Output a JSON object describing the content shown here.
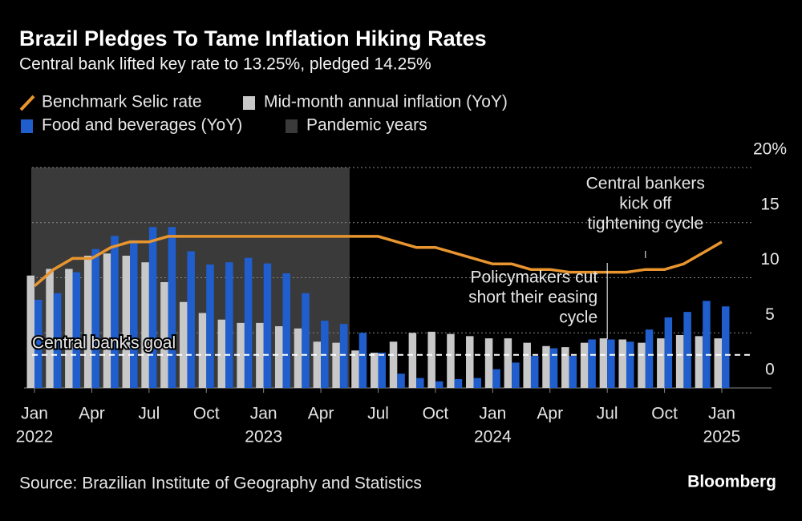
{
  "chart_data": {
    "type": "bar-line",
    "title": "Brazil Pledges To Tame Inflation Hiking Rates",
    "subtitle": "Central bank lifted key rate to 13.25%, pledged 14.25%",
    "source": "Source: Brazilian Institute of Geography and Statistics",
    "brand": "Bloomberg",
    "x": [
      "2022-01",
      "2022-02",
      "2022-03",
      "2022-04",
      "2022-05",
      "2022-06",
      "2022-07",
      "2022-08",
      "2022-09",
      "2022-10",
      "2022-11",
      "2022-12",
      "2023-01",
      "2023-02",
      "2023-03",
      "2023-04",
      "2023-05",
      "2023-06",
      "2023-07",
      "2023-08",
      "2023-09",
      "2023-10",
      "2023-11",
      "2023-12",
      "2024-01",
      "2024-02",
      "2024-03",
      "2024-04",
      "2024-05",
      "2024-06",
      "2024-07",
      "2024-08",
      "2024-09",
      "2024-10",
      "2024-11",
      "2024-12",
      "2025-01"
    ],
    "series": [
      {
        "name": "Benchmark Selic rate",
        "kind": "line",
        "color": "#e8952f",
        "values": [
          9.25,
          10.75,
          11.75,
          11.75,
          12.75,
          13.25,
          13.25,
          13.75,
          13.75,
          13.75,
          13.75,
          13.75,
          13.75,
          13.75,
          13.75,
          13.75,
          13.75,
          13.75,
          13.75,
          13.25,
          12.75,
          12.75,
          12.25,
          11.75,
          11.25,
          11.25,
          10.75,
          10.75,
          10.5,
          10.5,
          10.5,
          10.5,
          10.75,
          10.75,
          11.25,
          12.25,
          13.25
        ]
      },
      {
        "name": "Mid-month annual inflation (YoY)",
        "kind": "bar",
        "color": "#c8c8c8",
        "values": [
          10.2,
          10.8,
          10.8,
          12.0,
          12.2,
          12.0,
          11.4,
          9.6,
          7.8,
          6.8,
          6.2,
          5.9,
          5.9,
          5.6,
          5.4,
          4.2,
          4.1,
          3.4,
          3.2,
          4.2,
          5.0,
          5.1,
          4.9,
          4.7,
          4.5,
          4.5,
          4.1,
          3.8,
          3.7,
          4.1,
          4.5,
          4.4,
          4.1,
          4.5,
          4.8,
          4.7,
          4.5
        ]
      },
      {
        "name": "Food and beverages (YoY)",
        "kind": "bar",
        "color": "#1f5ecc",
        "values": [
          8.0,
          8.6,
          10.5,
          12.6,
          13.8,
          13.4,
          14.6,
          14.6,
          12.4,
          11.2,
          11.4,
          11.8,
          11.3,
          10.4,
          8.6,
          6.1,
          5.8,
          5.0,
          3.2,
          1.3,
          0.9,
          0.6,
          0.8,
          0.9,
          1.7,
          2.3,
          2.9,
          3.6,
          2.9,
          4.4,
          4.4,
          4.2,
          5.3,
          6.4,
          6.9,
          7.9,
          7.4
        ]
      }
    ],
    "shade": {
      "name": "Pandemic years",
      "color": "#3a3a3a",
      "x_range": [
        "2022-01",
        "2023-05"
      ]
    },
    "goal": {
      "label": "Central bank's goal",
      "value": 3
    },
    "annotations": [
      {
        "lines": [
          "Central bankers",
          "kick off",
          "tightening cycle"
        ],
        "x": "2024-09"
      },
      {
        "lines": [
          "Policymakers cut",
          "short their easing",
          "cycle"
        ],
        "x": "2024-07"
      }
    ],
    "ylim": [
      0,
      20
    ],
    "yticks": [
      0,
      5,
      10,
      15,
      {
        "value": 20,
        "label": "20%"
      }
    ],
    "xticks": [
      {
        "value": "2022-01",
        "label": "Jan"
      },
      {
        "value": "2022-04",
        "label": "Apr"
      },
      {
        "value": "2022-07",
        "label": "Jul"
      },
      {
        "value": "2022-10",
        "label": "Oct"
      },
      {
        "value": "2023-01",
        "label": "Jan"
      },
      {
        "value": "2023-04",
        "label": "Apr"
      },
      {
        "value": "2023-07",
        "label": "Jul"
      },
      {
        "value": "2023-10",
        "label": "Oct"
      },
      {
        "value": "2024-01",
        "label": "Jan"
      },
      {
        "value": "2024-04",
        "label": "Apr"
      },
      {
        "value": "2024-07",
        "label": "Jul"
      },
      {
        "value": "2024-10",
        "label": "Oct"
      },
      {
        "value": "2025-01",
        "label": "Jan"
      }
    ],
    "xyears": [
      {
        "value": "2022-01",
        "label": "2022"
      },
      {
        "value": "2023-01",
        "label": "2023"
      },
      {
        "value": "2024-01",
        "label": "2024"
      },
      {
        "value": "2025-01",
        "label": "2025"
      }
    ],
    "grid": true
  }
}
